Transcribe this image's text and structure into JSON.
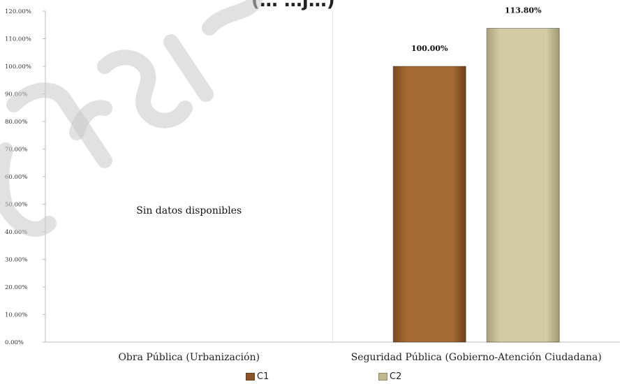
{
  "title_fragment": "(…    …j…)",
  "chart_data": {
    "type": "bar",
    "categories": [
      "Obra Pública (Urbanización)",
      "Seguridad Pública (Gobierno-Atención Ciudadana)"
    ],
    "series": [
      {
        "name": "C1",
        "color": "#a66b35",
        "values": [
          null,
          100.0
        ]
      },
      {
        "name": "C2",
        "color": "#d2cba3",
        "values": [
          null,
          113.8
        ]
      }
    ],
    "data_labels": {
      "C1": [
        null,
        "100.00%"
      ],
      "C2": [
        null,
        "113.80%"
      ]
    },
    "no_data_text": "Sin datos disponibles",
    "ylim": [
      0,
      120
    ],
    "y_ticks": [
      "0.00%",
      "10.00%",
      "20.00%",
      "30.00%",
      "40.00%",
      "50.00%",
      "60.00%",
      "70.00%",
      "80.00%",
      "90.00%",
      "100.00%",
      "110.00%",
      "120.00%"
    ],
    "y_tick_values": [
      0,
      10,
      20,
      30,
      40,
      50,
      60,
      70,
      80,
      90,
      100,
      110,
      120
    ],
    "legend_position": "bottom",
    "grid": false
  }
}
